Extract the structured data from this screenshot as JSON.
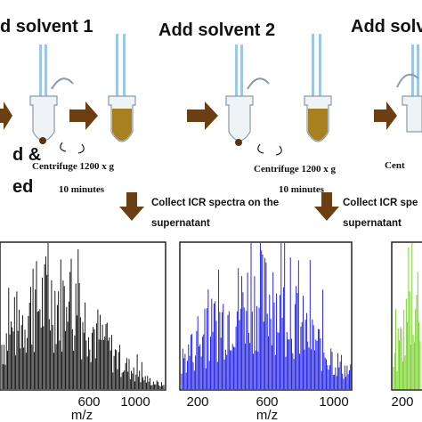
{
  "steps": [
    {
      "title": "d solvent 1",
      "note_lines": [
        "d &",
        "ed"
      ],
      "centrifuge": "Centrifuge 1200 x g",
      "duration": "10 minutes",
      "collect": [
        "Collect ICR spectra on the",
        "supernatant"
      ]
    },
    {
      "title": "Add solvent 2",
      "centrifuge": "Centrifuge 1200 x g",
      "duration": "10 minutes",
      "collect": [
        "Collect ICR spe",
        "supernatant"
      ]
    },
    {
      "title": "Add solvent",
      "centrifuge": "Cent"
    }
  ],
  "spectra": [
    {
      "ticks": [
        "600",
        "1000"
      ],
      "axis_label": "m/z"
    },
    {
      "ticks": [
        "200",
        "600",
        "1000"
      ],
      "axis_label": "m/z"
    },
    {
      "ticks": [
        "200"
      ]
    }
  ]
}
